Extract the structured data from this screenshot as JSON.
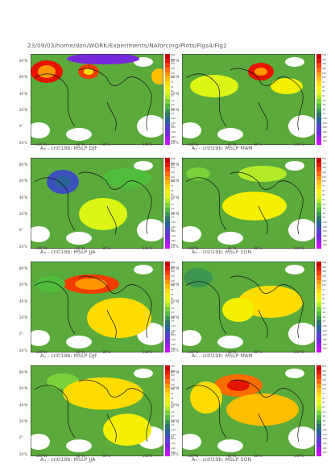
{
  "header": {
    "path": "23/09/03/home/don/WORK/Experiments/NAforcing/Plots/Figs4/Fig2"
  },
  "axes": {
    "lat_ticks": [
      "80°N",
      "60°N",
      "40°N",
      "20°N",
      "0°",
      "20°S"
    ],
    "lon_ticks": [
      "160°W",
      "80°W",
      "80°E",
      "140°E"
    ]
  },
  "colorbar": {
    "labels": [
      "500",
      "400",
      "300",
      "200",
      "150",
      "100",
      "70",
      "50",
      "30",
      "10",
      "-10",
      "-30",
      "-50",
      "-70",
      "-100",
      "-150",
      "-200",
      "-300",
      "-400",
      "-500"
    ],
    "colors": [
      "#c80000",
      "#e61400",
      "#f43c00",
      "#fa6e00",
      "#ff9600",
      "#ffbe00",
      "#ffdc00",
      "#f5f000",
      "#dcf514",
      "#b4eb28",
      "#78d23c",
      "#50be3c",
      "#3c9650",
      "#2d7864",
      "#286496",
      "#3c50be",
      "#5a3cd2",
      "#7828dc",
      "#a01ee6",
      "#c814f0"
    ]
  },
  "panels": [
    {
      "caption": "A₄ - cntl19b: MSLP DJF",
      "scenario": "A4",
      "season": "DJF"
    },
    {
      "caption": "A₄ - cntl19b: MSLP MAM",
      "scenario": "A4",
      "season": "MAM"
    },
    {
      "caption": "A₄ - cntl19b: MSLP JJA",
      "scenario": "A4",
      "season": "JJA"
    },
    {
      "caption": "A₄ - cntl19b: MSLP SON",
      "scenario": "A4",
      "season": "SON"
    },
    {
      "caption": "A₀ - cntl19b: MSLP DJF",
      "scenario": "A0",
      "season": "DJF"
    },
    {
      "caption": "A₀ - cntl19b: MSLP MAM",
      "scenario": "A0",
      "season": "MAM"
    },
    {
      "caption": "A₀ - cntl19b: MSLP JJA",
      "scenario": "A0",
      "season": "JJA"
    },
    {
      "caption": "A₀ - cntl19b: MSLP SON",
      "scenario": "A0",
      "season": "SON"
    }
  ]
}
